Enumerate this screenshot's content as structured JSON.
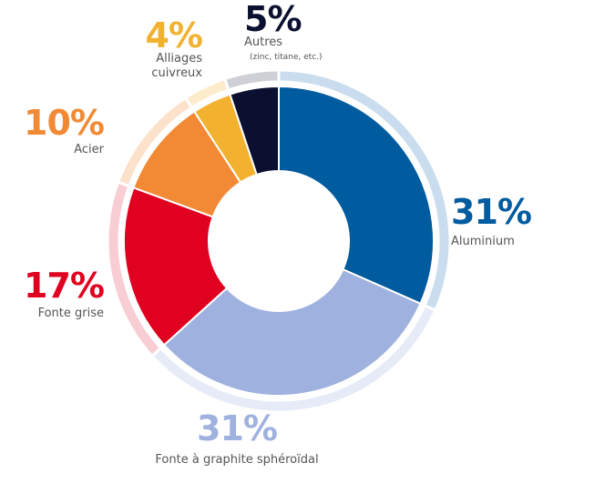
{
  "chart_data": {
    "type": "pie",
    "series": [
      {
        "label": "Aluminium",
        "value": 31,
        "value_label": "31%",
        "color": "#005b9f",
        "ring_color": "#c9ddee"
      },
      {
        "label": "Fonte à graphite sphéroïdal",
        "value": 31,
        "value_label": "31%",
        "color": "#9fb1de",
        "ring_color": "#e6ebf7"
      },
      {
        "label": "Fonte grise",
        "value": 17,
        "value_label": "17%",
        "color": "#e0001f",
        "ring_color": "#f8cdd3"
      },
      {
        "label": "Acier",
        "value": 10,
        "value_label": "10%",
        "color": "#f28a35",
        "ring_color": "#fde2cb"
      },
      {
        "label": "Alliages cuivreux",
        "label_lines": [
          "Alliages",
          "cuivreux"
        ],
        "value": 4,
        "value_label": "4%",
        "color": "#f2b22f",
        "ring_color": "#fdeccc"
      },
      {
        "label": "Autres",
        "note": "(zinc, titane, etc.)",
        "value": 5,
        "value_label": "5%",
        "color": "#0b1030",
        "ring_color": "#cfd0d6"
      }
    ]
  }
}
